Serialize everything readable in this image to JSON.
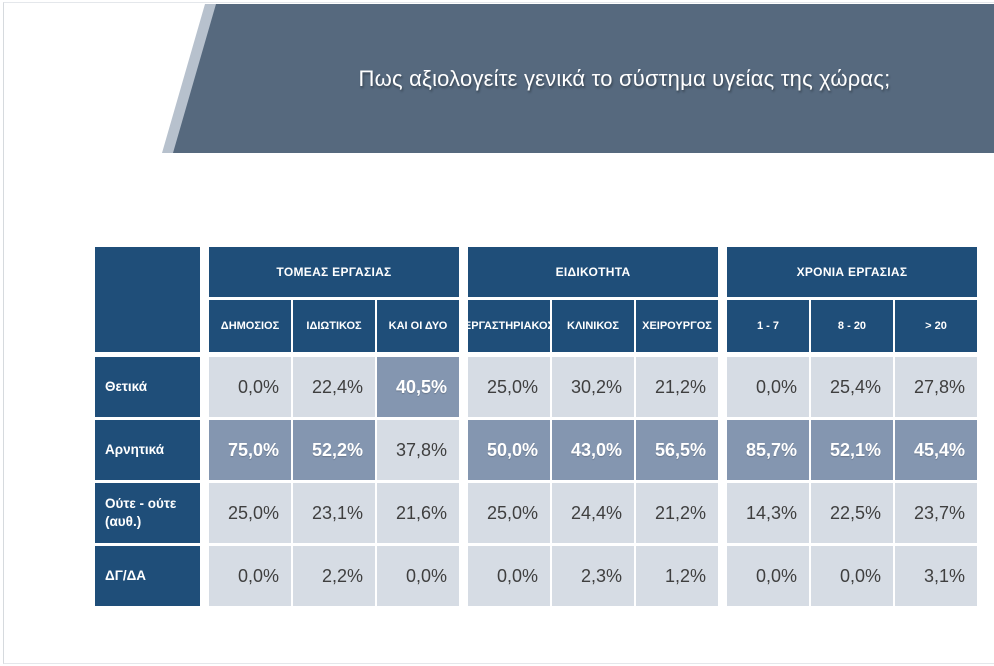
{
  "slide": {
    "title": "Πως αξιολογείτε γενικά το σύστημα υγείας της χώρας;"
  },
  "colors": {
    "header": "#1F4E79",
    "banner": "#56697E",
    "banner_stripe": "#B7C1CD",
    "cell_bg": "#D6DCE4",
    "cell_highlight_bg": "#8496B0",
    "cell_text": "#3F3F3F"
  },
  "table": {
    "groups": [
      {
        "label": "ΤΟΜΕΑΣ ΕΡΓΑΣΙΑΣ",
        "columns": [
          "ΔΗΜΟΣΙΟΣ",
          "ΙΔΙΩΤΙΚΟΣ",
          "ΚΑΙ ΟΙ ΔΥΟ"
        ]
      },
      {
        "label": "ΕΙΔΙΚΟΤΗΤΑ",
        "columns": [
          "ΕΡΓΑΣΤΗΡΙΑΚΟΣ",
          "ΚΛΙΝΙΚΟΣ",
          "ΧΕΙΡΟΥΡΓΟΣ"
        ]
      },
      {
        "label": "ΧΡΟΝΙΑ ΕΡΓΑΣΙΑΣ",
        "columns": [
          "1 - 7",
          "8 - 20",
          "> 20"
        ]
      }
    ],
    "rows": [
      {
        "label": "Θετικά",
        "cells": [
          {
            "v": "0,0%",
            "hl": false
          },
          {
            "v": "22,4%",
            "hl": false
          },
          {
            "v": "40,5%",
            "hl": true
          },
          {
            "v": "25,0%",
            "hl": false
          },
          {
            "v": "30,2%",
            "hl": false
          },
          {
            "v": "21,2%",
            "hl": false
          },
          {
            "v": "0,0%",
            "hl": false
          },
          {
            "v": "25,4%",
            "hl": false
          },
          {
            "v": "27,8%",
            "hl": false
          }
        ]
      },
      {
        "label": "Αρνητικά",
        "cells": [
          {
            "v": "75,0%",
            "hl": true
          },
          {
            "v": "52,2%",
            "hl": true
          },
          {
            "v": "37,8%",
            "hl": false
          },
          {
            "v": "50,0%",
            "hl": true
          },
          {
            "v": "43,0%",
            "hl": true
          },
          {
            "v": "56,5%",
            "hl": true
          },
          {
            "v": "85,7%",
            "hl": true
          },
          {
            "v": "52,1%",
            "hl": true
          },
          {
            "v": "45,4%",
            "hl": true
          }
        ]
      },
      {
        "label": "Ούτε - ούτε (αυθ.)",
        "cells": [
          {
            "v": "25,0%",
            "hl": false
          },
          {
            "v": "23,1%",
            "hl": false
          },
          {
            "v": "21,6%",
            "hl": false
          },
          {
            "v": "25,0%",
            "hl": false
          },
          {
            "v": "24,4%",
            "hl": false
          },
          {
            "v": "21,2%",
            "hl": false
          },
          {
            "v": "14,3%",
            "hl": false
          },
          {
            "v": "22,5%",
            "hl": false
          },
          {
            "v": "23,7%",
            "hl": false
          }
        ]
      },
      {
        "label": "ΔΓ/ΔΑ",
        "cells": [
          {
            "v": "0,0%",
            "hl": false
          },
          {
            "v": "2,2%",
            "hl": false
          },
          {
            "v": "0,0%",
            "hl": false
          },
          {
            "v": "0,0%",
            "hl": false
          },
          {
            "v": "2,3%",
            "hl": false
          },
          {
            "v": "1,2%",
            "hl": false
          },
          {
            "v": "0,0%",
            "hl": false
          },
          {
            "v": "0,0%",
            "hl": false
          },
          {
            "v": "3,1%",
            "hl": false
          }
        ]
      }
    ]
  },
  "chart_data": {
    "type": "table",
    "title": "Πως αξιολογείτε γενικά το σύστημα υγείας της χώρας;",
    "column_groups": [
      {
        "label": "ΤΟΜΕΑΣ ΕΡΓΑΣΙΑΣ",
        "columns": [
          "ΔΗΜΟΣΙΟΣ",
          "ΙΔΙΩΤΙΚΟΣ",
          "ΚΑΙ ΟΙ ΔΥΟ"
        ]
      },
      {
        "label": "ΕΙΔΙΚΟΤΗΤΑ",
        "columns": [
          "ΕΡΓΑΣΤΗΡΙΑΚΟΣ",
          "ΚΛΙΝΙΚΟΣ",
          "ΧΕΙΡΟΥΡΓΟΣ"
        ]
      },
      {
        "label": "ΧΡΟΝΙΑ ΕΡΓΑΣΙΑΣ",
        "columns": [
          "1 - 7",
          "8 - 20",
          "> 20"
        ]
      }
    ],
    "row_labels": [
      "Θετικά",
      "Αρνητικά",
      "Ούτε - ούτε (αυθ.)",
      "ΔΓ/ΔΑ"
    ],
    "values_percent": [
      [
        0.0,
        22.4,
        40.5,
        25.0,
        30.2,
        21.2,
        0.0,
        25.4,
        27.8
      ],
      [
        75.0,
        52.2,
        37.8,
        50.0,
        43.0,
        56.5,
        85.7,
        52.1,
        45.4
      ],
      [
        25.0,
        23.1,
        21.6,
        25.0,
        24.4,
        21.2,
        14.3,
        22.5,
        23.7
      ],
      [
        0.0,
        2.2,
        0.0,
        0.0,
        2.3,
        1.2,
        0.0,
        0.0,
        3.1
      ]
    ],
    "highlighted": [
      [
        false,
        false,
        true,
        false,
        false,
        false,
        false,
        false,
        false
      ],
      [
        true,
        true,
        false,
        true,
        true,
        true,
        true,
        true,
        true
      ],
      [
        false,
        false,
        false,
        false,
        false,
        false,
        false,
        false,
        false
      ],
      [
        false,
        false,
        false,
        false,
        false,
        false,
        false,
        false,
        false
      ]
    ],
    "value_format": "percent, comma decimal separator"
  }
}
